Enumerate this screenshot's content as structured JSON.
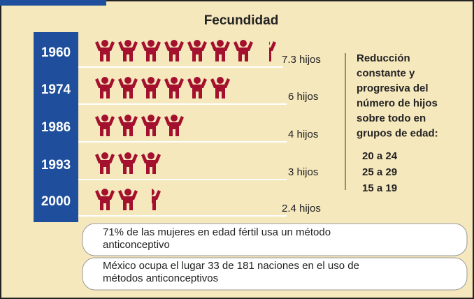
{
  "chart_data": {
    "type": "pictogram",
    "title": "Fecundidad",
    "categories": [
      "1960",
      "1974",
      "1986",
      "1993",
      "2000"
    ],
    "values": [
      7.3,
      6,
      4,
      3,
      2.4
    ],
    "value_labels": [
      "7.3 hijos",
      "6 hijos",
      "4 hijos",
      "3 hijos",
      "2.4 hijos"
    ],
    "color": "#a3112e",
    "note": [
      "Reducción",
      "constante y",
      "progresiva del",
      "número de hijos",
      "sobre todo en",
      "grupos de edad:"
    ],
    "age_groups": [
      "20 a 24",
      "25 a 29",
      "15 a 19"
    ],
    "footnotes": [
      [
        "71% de las mujeres en edad fértil usa un método",
        "anticonceptivo"
      ],
      [
        "México ocupa el lugar 33 de 181 naciones en el uso de",
        "métodos anticonceptivos"
      ]
    ]
  }
}
